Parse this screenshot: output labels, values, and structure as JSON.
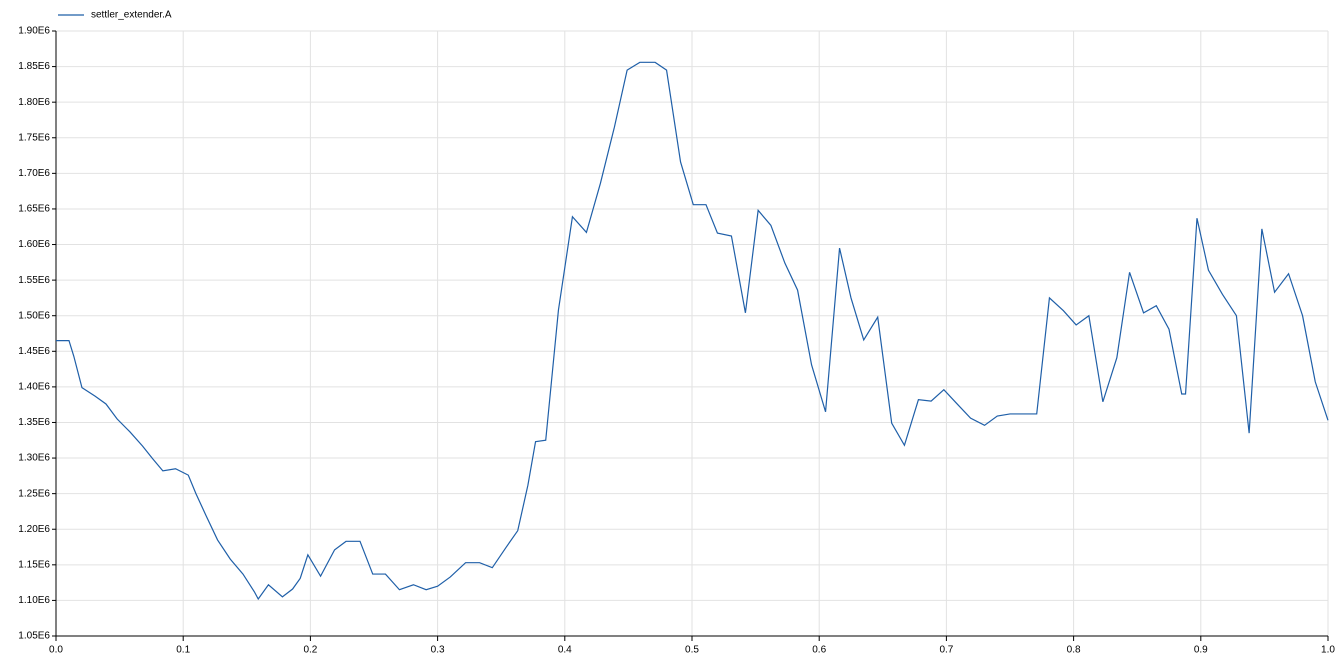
{
  "chart_data": {
    "type": "line",
    "x": [
      0,
      0.0102,
      0.014,
      0.0204,
      0.0307,
      0.0393,
      0.048,
      0.058,
      0.068,
      0.076,
      0.084,
      0.094,
      0.104,
      0.11,
      0.118,
      0.127,
      0.137,
      0.147,
      0.156,
      0.159,
      0.167,
      0.178,
      0.186,
      0.192,
      0.198,
      0.208,
      0.219,
      0.228,
      0.239,
      0.249,
      0.259,
      0.27,
      0.281,
      0.291,
      0.3,
      0.31,
      0.322,
      0.333,
      0.343,
      0.354,
      0.363,
      0.371,
      0.377,
      0.385,
      0.395,
      0.406,
      0.417,
      0.428,
      0.439,
      0.449,
      0.459,
      0.471,
      0.48,
      0.491,
      0.501,
      0.511,
      0.52,
      0.531,
      0.542,
      0.552,
      0.562,
      0.573,
      0.583,
      0.594,
      0.605,
      0.616,
      0.625,
      0.635,
      0.646,
      0.657,
      0.667,
      0.678,
      0.688,
      0.698,
      0.709,
      0.719,
      0.73,
      0.74,
      0.75,
      0.76,
      0.771,
      0.781,
      0.792,
      0.802,
      0.812,
      0.823,
      0.834,
      0.844,
      0.855,
      0.865,
      0.875,
      0.885,
      0.888,
      0.897,
      0.906,
      0.917,
      0.928,
      0.938,
      0.948,
      0.958,
      0.969,
      0.98,
      0.99,
      1
    ],
    "series": [
      {
        "name": "settler_extender.A",
        "color": "#1f5fa8",
        "values": [
          1465000,
          1465000,
          1443000,
          1399000,
          1387000,
          1376000,
          1355000,
          1337000,
          1317000,
          1299000,
          1282000,
          1285000,
          1276000,
          1250000,
          1219000,
          1185000,
          1158000,
          1137000,
          1112000,
          1102000,
          1122000,
          1105000,
          1116000,
          1131000,
          1164000,
          1134000,
          1171000,
          1183000,
          1183000,
          1137000,
          1137000,
          1115000,
          1122000,
          1115000,
          1120000,
          1133000,
          1153000,
          1153000,
          1146000,
          1175000,
          1198000,
          1262000,
          1323000,
          1325000,
          1508000,
          1639000,
          1617000,
          1686000,
          1765000,
          1845000,
          1856000,
          1856000,
          1845000,
          1716000,
          1656000,
          1656000,
          1616000,
          1612000,
          1504000,
          1648000,
          1627000,
          1574000,
          1536000,
          1431000,
          1365000,
          1595000,
          1525000,
          1466000,
          1498000,
          1349000,
          1318000,
          1382000,
          1380000,
          1396000,
          1375000,
          1356000,
          1346000,
          1359000,
          1362000,
          1362000,
          1362000,
          1525000,
          1507000,
          1487000,
          1500000,
          1379000,
          1441000,
          1561000,
          1504000,
          1514000,
          1481000,
          1390000,
          1390000,
          1637000,
          1564000,
          1530000,
          1500000,
          1335000,
          1622000,
          1533000,
          1559000,
          1500000,
          1407000,
          1353000
        ]
      }
    ],
    "xlim": [
      0,
      1
    ],
    "xticks": [
      {
        "value": 0,
        "label": "0.0"
      },
      0.1,
      0.2,
      0.3,
      0.4,
      0.5,
      0.6,
      0.7,
      0.8,
      0.9,
      {
        "value": 1,
        "label": "1.0"
      }
    ],
    "ylim": [
      1050000,
      1900000
    ],
    "yticks": [
      {
        "value": 1050000,
        "label": "1.05E6"
      },
      {
        "value": 1100000,
        "label": "1.10E6"
      },
      {
        "value": 1150000,
        "label": "1.15E6"
      },
      {
        "value": 1200000,
        "label": "1.20E6"
      },
      {
        "value": 1250000,
        "label": "1.25E6"
      },
      {
        "value": 1300000,
        "label": "1.30E6"
      },
      {
        "value": 1350000,
        "label": "1.35E6"
      },
      {
        "value": 1400000,
        "label": "1.40E6"
      },
      {
        "value": 1450000,
        "label": "1.45E6"
      },
      {
        "value": 1500000,
        "label": "1.50E6"
      },
      {
        "value": 1550000,
        "label": "1.55E6"
      },
      {
        "value": 1600000,
        "label": "1.60E6"
      },
      {
        "value": 1650000,
        "label": "1.65E6"
      },
      {
        "value": 1700000,
        "label": "1.70E6"
      },
      {
        "value": 1750000,
        "label": "1.75E6"
      },
      {
        "value": 1800000,
        "label": "1.80E6"
      },
      {
        "value": 1850000,
        "label": "1.85E6"
      },
      {
        "value": 1900000,
        "label": "1.90E6"
      }
    ],
    "grid": true,
    "legend": "top-left"
  }
}
